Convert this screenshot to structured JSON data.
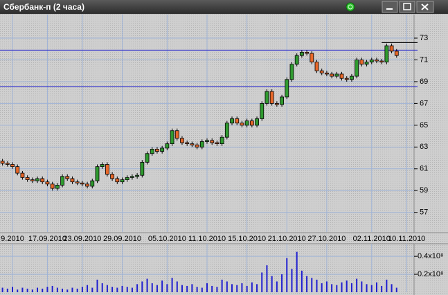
{
  "window": {
    "title": "Сбербанк-п (2 часа)"
  },
  "chart_data": [
    {
      "type": "candlestick",
      "categories": [
        null,
        null,
        "9.2010",
        null,
        null,
        null,
        null,
        null,
        null,
        "17.09.2010",
        null,
        null,
        null,
        null,
        null,
        null,
        "23.09.2010",
        null,
        null,
        null,
        null,
        null,
        null,
        null,
        "29.09.2010",
        null,
        null,
        null,
        null,
        null,
        null,
        null,
        null,
        "05.10.2010",
        null,
        null,
        null,
        null,
        null,
        null,
        null,
        "11.10.2010",
        null,
        null,
        null,
        null,
        null,
        null,
        null,
        "15.10.2010",
        null,
        null,
        null,
        null,
        null,
        null,
        null,
        "21.10.2010",
        null,
        null,
        null,
        null,
        null,
        null,
        null,
        "27.10.2010",
        null,
        null,
        null,
        null,
        null,
        null,
        null,
        null,
        "02.11.2010",
        null,
        null,
        null,
        null,
        null,
        null,
        "10.11.2010",
        null
      ],
      "open": [
        61.7,
        61.5,
        61.4,
        61.2,
        60.6,
        60.2,
        60.0,
        59.9,
        60.1,
        59.8,
        59.6,
        59.2,
        59.5,
        60.3,
        60.1,
        59.8,
        59.7,
        59.6,
        59.4,
        59.9,
        61.2,
        61.4,
        60.5,
        60.1,
        59.8,
        60.0,
        60.2,
        60.3,
        60.4,
        61.6,
        62.4,
        62.8,
        62.6,
        62.9,
        63.3,
        64.5,
        63.8,
        63.4,
        63.3,
        63.2,
        63.0,
        63.5,
        63.6,
        63.4,
        63.3,
        63.9,
        65.2,
        65.6,
        65.2,
        65.0,
        65.4,
        65.0,
        65.6,
        67.0,
        68.1,
        67.0,
        66.9,
        67.6,
        69.2,
        70.6,
        71.4,
        71.7,
        71.6,
        70.8,
        70.0,
        69.8,
        69.7,
        69.5,
        69.7,
        69.3,
        69.2,
        69.5,
        71.0,
        70.6,
        70.8,
        71.0,
        70.9,
        70.8,
        72.3,
        71.8,
        null,
        null,
        null
      ],
      "high": [
        61.9,
        61.7,
        61.6,
        61.4,
        60.8,
        60.4,
        60.2,
        60.3,
        60.3,
        60.0,
        59.8,
        59.7,
        60.5,
        60.5,
        60.3,
        60.0,
        59.9,
        59.8,
        60.1,
        61.4,
        61.6,
        61.6,
        60.7,
        60.3,
        60.2,
        60.4,
        60.5,
        60.6,
        61.8,
        62.6,
        63.0,
        63.0,
        63.1,
        63.5,
        64.7,
        64.7,
        64.0,
        63.6,
        63.5,
        63.4,
        63.7,
        63.8,
        63.8,
        63.6,
        64.1,
        65.4,
        65.8,
        65.8,
        65.4,
        65.6,
        65.6,
        65.8,
        67.2,
        68.3,
        68.3,
        67.2,
        67.8,
        69.4,
        70.8,
        71.6,
        71.9,
        71.9,
        71.8,
        71.0,
        70.2,
        70.0,
        69.9,
        69.9,
        69.9,
        69.5,
        69.7,
        71.2,
        71.2,
        71.0,
        71.2,
        71.2,
        71.1,
        72.5,
        72.5,
        72.0,
        null,
        null,
        null
      ],
      "low": [
        61.3,
        61.2,
        61.0,
        60.4,
        60.0,
        59.8,
        59.7,
        59.7,
        59.6,
        59.4,
        59.0,
        59.0,
        59.3,
        59.9,
        59.6,
        59.5,
        59.4,
        59.2,
        59.2,
        59.7,
        61.0,
        60.3,
        59.9,
        59.6,
        59.6,
        59.8,
        60.0,
        60.1,
        60.2,
        61.4,
        62.2,
        62.4,
        62.4,
        62.7,
        63.1,
        63.6,
        63.2,
        63.1,
        63.0,
        62.8,
        62.8,
        63.3,
        63.2,
        63.1,
        63.1,
        63.7,
        65.0,
        65.0,
        64.8,
        64.8,
        64.8,
        64.8,
        65.4,
        66.8,
        66.8,
        66.7,
        66.7,
        67.4,
        69.0,
        70.4,
        71.2,
        71.4,
        70.6,
        69.8,
        69.6,
        69.5,
        69.3,
        69.3,
        69.1,
        69.0,
        69.0,
        69.3,
        70.4,
        70.4,
        70.6,
        70.7,
        70.6,
        70.6,
        71.6,
        71.2,
        null,
        null,
        null
      ],
      "close": [
        61.5,
        61.4,
        61.2,
        60.6,
        60.2,
        60.0,
        59.9,
        60.1,
        59.8,
        59.6,
        59.2,
        59.5,
        60.3,
        60.1,
        59.8,
        59.7,
        59.6,
        59.4,
        59.9,
        61.2,
        61.4,
        60.5,
        60.1,
        59.8,
        60.0,
        60.2,
        60.3,
        60.4,
        61.6,
        62.4,
        62.8,
        62.6,
        62.9,
        63.3,
        64.5,
        63.8,
        63.4,
        63.3,
        63.2,
        63.0,
        63.5,
        63.6,
        63.4,
        63.3,
        63.9,
        65.2,
        65.6,
        65.2,
        65.0,
        65.4,
        65.0,
        65.6,
        67.0,
        68.1,
        67.0,
        66.9,
        67.6,
        69.2,
        70.6,
        71.4,
        71.7,
        71.6,
        70.8,
        70.0,
        69.8,
        69.7,
        69.5,
        69.7,
        69.3,
        69.2,
        69.5,
        71.0,
        70.6,
        70.8,
        71.0,
        70.9,
        70.8,
        72.3,
        71.8,
        71.4,
        null,
        null,
        null
      ],
      "up_color": "#2f9a2f",
      "down_color": "#e8682a",
      "ylim": [
        55.2,
        75.1
      ],
      "yticks": [
        57,
        59,
        61,
        63,
        65,
        67,
        69,
        71,
        73
      ],
      "levels": [
        {
          "value": 71.9,
          "color": "#1a1acc"
        },
        {
          "value": 68.55,
          "color": "#1a1acc"
        },
        {
          "value": 72.6,
          "color": "#000000",
          "partial": true
        }
      ],
      "grid": true
    },
    {
      "type": "bar",
      "values": [
        5000000,
        4000000,
        6000000,
        3000000,
        5000000,
        4000000,
        3000000,
        5000000,
        4000000,
        6000000,
        7000000,
        5000000,
        4000000,
        3000000,
        5000000,
        4000000,
        6000000,
        8000000,
        5000000,
        14000000,
        10000000,
        8000000,
        6000000,
        5000000,
        7000000,
        6000000,
        5000000,
        9000000,
        12000000,
        15000000,
        10000000,
        8000000,
        13000000,
        9000000,
        16000000,
        12000000,
        8000000,
        7000000,
        9000000,
        6000000,
        5000000,
        10000000,
        7000000,
        6000000,
        14000000,
        12000000,
        9000000,
        8000000,
        10000000,
        7000000,
        11000000,
        9000000,
        22000000,
        30000000,
        18000000,
        12000000,
        20000000,
        38000000,
        26000000,
        45000000,
        24000000,
        18000000,
        16000000,
        14000000,
        10000000,
        12000000,
        9000000,
        8000000,
        11000000,
        13000000,
        10000000,
        15000000,
        12000000,
        9000000,
        8000000,
        11000000,
        7000000,
        14000000,
        9000000,
        5000000
      ],
      "color": "#1f1fd0",
      "ylim": [
        0,
        54000000
      ],
      "yticks": [
        {
          "value": 20000000,
          "label": "0.2x10⁸"
        },
        {
          "value": 40000000,
          "label": "0.4x10⁸"
        }
      ]
    }
  ]
}
